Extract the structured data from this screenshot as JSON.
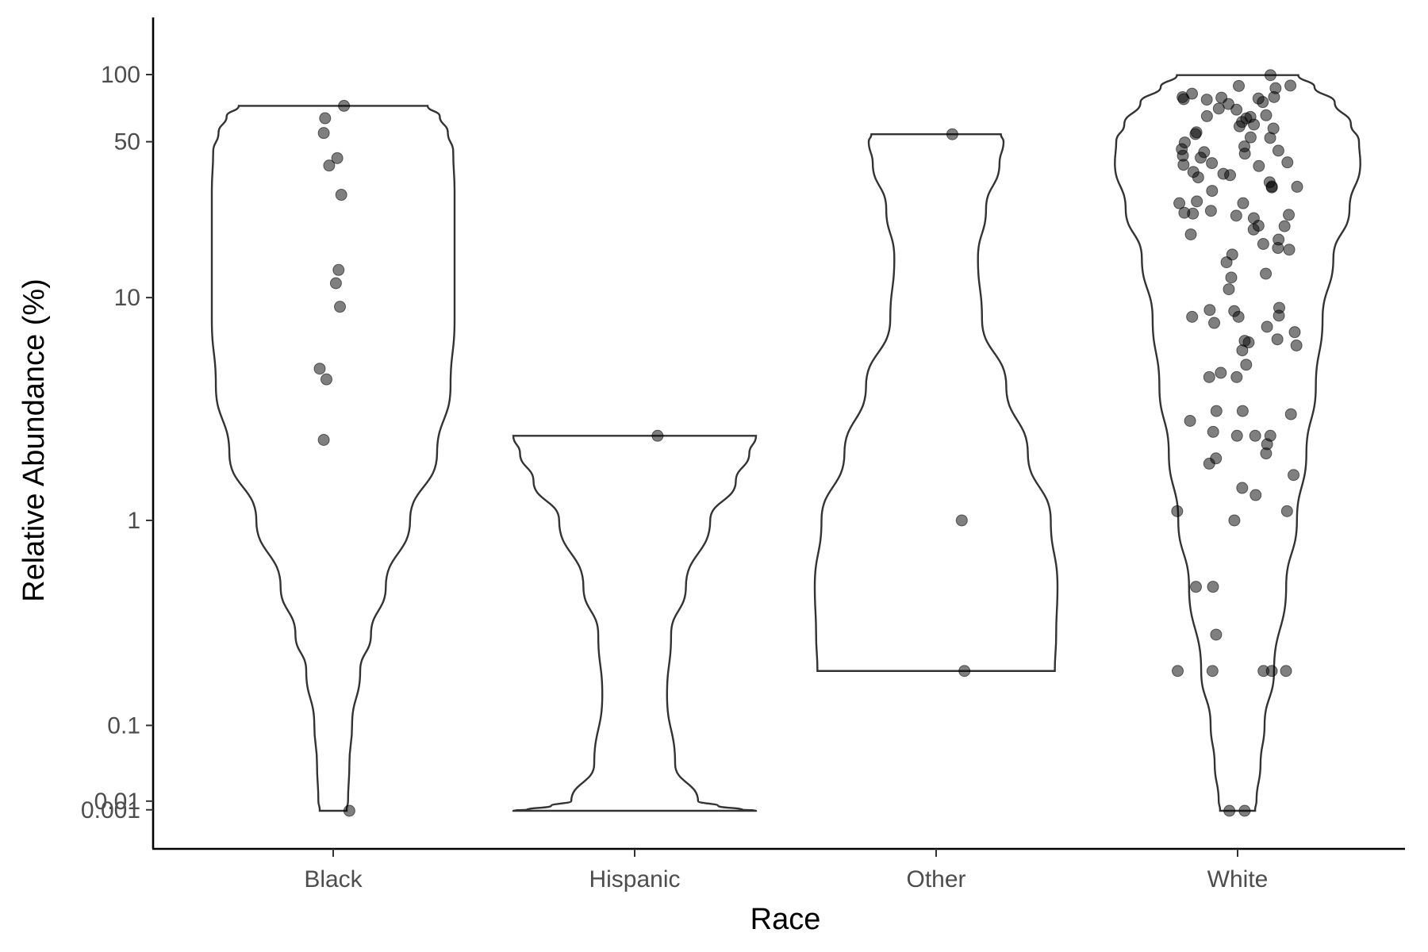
{
  "chart_data": {
    "type": "violin",
    "xlabel": "Race",
    "ylabel": "Relative Abundance (%)",
    "y_scale": "pseudo-log",
    "y_ticks": [
      0.001,
      0.01,
      0.1,
      1,
      10,
      50,
      100
    ],
    "y_tick_labels": [
      "0.001",
      "0.01",
      "0.1",
      "1",
      "10",
      "50",
      "100"
    ],
    "categories": [
      "Black",
      "Hispanic",
      "Other",
      "White"
    ],
    "legend": "none",
    "grid": false,
    "groups": [
      {
        "name": "Black",
        "points": [
          0,
          2.3,
          4.3,
          4.8,
          9.1,
          11.6,
          13.3,
          28.9,
          39.1,
          42.2,
          54.7,
          63.7,
          72.4
        ],
        "jitter": [
          0.12,
          -0.07,
          -0.05,
          -0.1,
          0.05,
          0.02,
          0.04,
          0.06,
          -0.03,
          0.03,
          -0.07,
          -0.06,
          0.08
        ],
        "violin_profile": [
          [
            0,
            0.1
          ],
          [
            0.001,
            0.1
          ],
          [
            0.01,
            0.11
          ],
          [
            0.05,
            0.12
          ],
          [
            0.1,
            0.14
          ],
          [
            0.2,
            0.2
          ],
          [
            0.3,
            0.28
          ],
          [
            0.5,
            0.39
          ],
          [
            1,
            0.57
          ],
          [
            2,
            0.77
          ],
          [
            4,
            0.87
          ],
          [
            8,
            0.9
          ],
          [
            15,
            0.9
          ],
          [
            30,
            0.9
          ],
          [
            45,
            0.89
          ],
          [
            55,
            0.85
          ],
          [
            65,
            0.79
          ],
          [
            72.4,
            0.7
          ]
        ]
      },
      {
        "name": "Hispanic",
        "points": [
          2.4
        ],
        "jitter": [
          0.17
        ],
        "violin_profile": [
          [
            0,
            0.9
          ],
          [
            0.0005,
            0.88
          ],
          [
            0.001,
            0.8
          ],
          [
            0.005,
            0.62
          ],
          [
            0.01,
            0.47
          ],
          [
            0.05,
            0.3
          ],
          [
            0.15,
            0.24
          ],
          [
            0.3,
            0.27
          ],
          [
            0.5,
            0.38
          ],
          [
            1,
            0.56
          ],
          [
            1.5,
            0.75
          ],
          [
            2,
            0.85
          ],
          [
            2.4,
            0.9
          ]
        ]
      },
      {
        "name": "Other",
        "points": [
          0.2,
          1,
          54
        ],
        "jitter": [
          0.21,
          0.19,
          0.12
        ],
        "violin_profile": [
          [
            0.2,
            0.88
          ],
          [
            0.3,
            0.89
          ],
          [
            0.5,
            0.9
          ],
          [
            1,
            0.85
          ],
          [
            2,
            0.68
          ],
          [
            4,
            0.52
          ],
          [
            8,
            0.34
          ],
          [
            15,
            0.31
          ],
          [
            25,
            0.37
          ],
          [
            40,
            0.47
          ],
          [
            50,
            0.5
          ],
          [
            54,
            0.48
          ]
        ]
      },
      {
        "name": "White",
        "points": [
          0,
          0,
          0.2,
          0.2,
          0.2,
          0.2,
          0.2,
          0.3,
          0.5,
          0.5,
          1,
          1.1,
          1.1,
          1.3,
          1.4,
          1.6,
          1.8,
          1.9,
          2,
          2.2,
          2.4,
          2.4,
          2.4,
          2.5,
          2.8,
          3,
          3.1,
          3.1,
          4.4,
          4.4,
          4.6,
          5,
          5.8,
          6.1,
          6.3,
          6.4,
          6.5,
          7,
          7.4,
          7.7,
          8.2,
          8.2,
          8.3,
          8.7,
          8.8,
          9,
          10.9,
          12.3,
          12.8,
          14.4,
          15.6,
          16.4,
          16.7,
          17.4,
          18.2,
          19.2,
          20.2,
          20.9,
          21,
          22.7,
          23.3,
          23.5,
          23.8,
          24,
          24.5,
          26.5,
          26.5,
          27,
          30.1,
          31.2,
          31.4,
          31.5,
          32.9,
          34.6,
          35.4,
          35.9,
          36.6,
          38.9,
          39.4,
          40.1,
          40.4,
          42.4,
          43.3,
          44.2,
          44.9,
          45.6,
          46.3,
          47.6,
          49.6,
          52,
          52.3,
          54.1,
          55.1,
          57.3,
          58.6,
          59.7,
          61.3,
          63.6,
          64.6,
          65.1,
          65.7,
          69.6,
          70.4,
          73.8,
          75.3,
          77.2,
          77.6,
          78.1,
          78.8,
          79.2,
          79.3,
          82.1,
          86.9,
          88.9,
          89.3,
          99.4
        ],
        "violin_profile": [
          [
            0,
            0.13
          ],
          [
            0.001,
            0.13
          ],
          [
            0.01,
            0.14
          ],
          [
            0.05,
            0.17
          ],
          [
            0.1,
            0.2
          ],
          [
            0.2,
            0.27
          ],
          [
            0.5,
            0.36
          ],
          [
            1,
            0.44
          ],
          [
            2,
            0.51
          ],
          [
            4,
            0.58
          ],
          [
            8,
            0.63
          ],
          [
            15,
            0.71
          ],
          [
            25,
            0.83
          ],
          [
            40,
            0.91
          ],
          [
            50,
            0.9
          ],
          [
            60,
            0.84
          ],
          [
            75,
            0.72
          ],
          [
            88,
            0.57
          ],
          [
            99.4,
            0.45
          ]
        ]
      }
    ]
  }
}
